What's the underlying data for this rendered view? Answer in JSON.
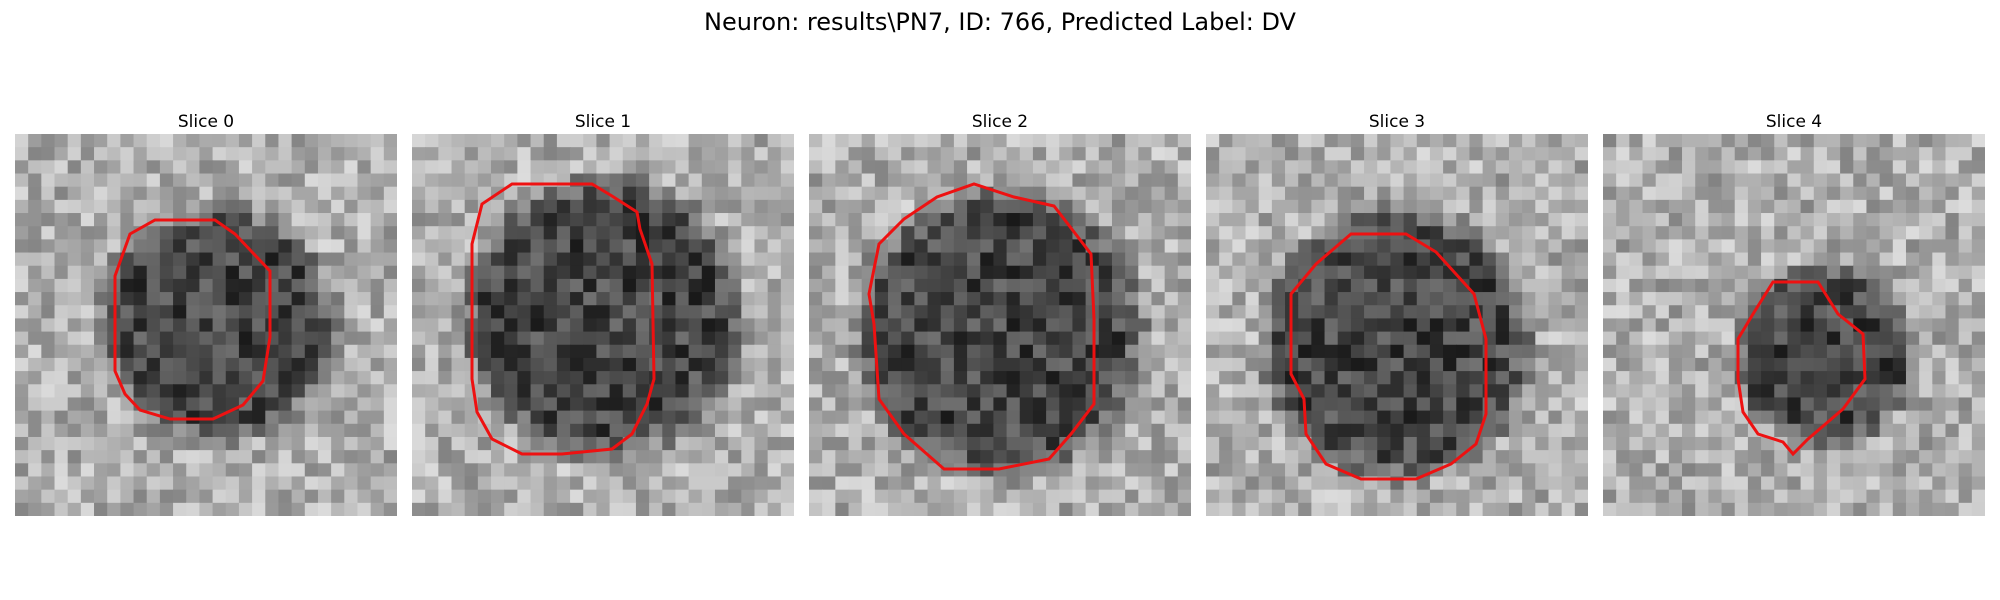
{
  "figure": {
    "title": "Neuron: results\\PN7, ID: 766, Predicted Label: DV",
    "contour_color": "#ee1111",
    "slices": [
      {
        "title": "Slice 0",
        "icon": "neuron-grayscale-image",
        "dark_cx": 0.53,
        "dark_cy": 0.5,
        "dark_r": 0.26,
        "seed": 11
      },
      {
        "title": "Slice 1",
        "icon": "neuron-grayscale-image",
        "dark_cx": 0.5,
        "dark_cy": 0.48,
        "dark_r": 0.31,
        "seed": 23
      },
      {
        "title": "Slice 2",
        "icon": "neuron-grayscale-image",
        "dark_cx": 0.5,
        "dark_cy": 0.52,
        "dark_r": 0.32,
        "seed": 37
      },
      {
        "title": "Slice 3",
        "icon": "neuron-grayscale-image",
        "dark_cx": 0.5,
        "dark_cy": 0.55,
        "dark_r": 0.3,
        "seed": 41
      },
      {
        "title": "Slice 4",
        "icon": "neuron-grayscale-image",
        "dark_cx": 0.58,
        "dark_cy": 0.58,
        "dark_r": 0.2,
        "seed": 53
      }
    ]
  }
}
